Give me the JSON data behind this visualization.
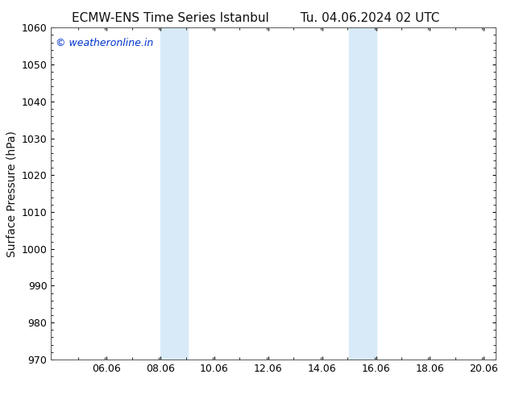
{
  "title_left": "ECMW-ENS Time Series Istanbul",
  "title_right": "Tu. 04.06.2024 02 UTC",
  "ylabel": "Surface Pressure (hPa)",
  "ylim": [
    970,
    1060
  ],
  "yticks": [
    970,
    980,
    990,
    1000,
    1010,
    1020,
    1030,
    1040,
    1050,
    1060
  ],
  "xlim_start": 4.0,
  "xlim_end": 20.5,
  "xticks": [
    6.06,
    8.06,
    10.06,
    12.06,
    14.06,
    16.06,
    18.06,
    20.06
  ],
  "xtick_labels": [
    "06.06",
    "08.06",
    "10.06",
    "12.06",
    "14.06",
    "16.06",
    "18.06",
    "20.06"
  ],
  "shaded_bands": [
    {
      "xmin": 8.06,
      "xmax": 9.06
    },
    {
      "xmin": 15.06,
      "xmax": 16.06
    }
  ],
  "shaded_color": "#d8eaf8",
  "background_color": "#ffffff",
  "plot_bg_color": "#ffffff",
  "watermark": "© weatheronline.in",
  "watermark_color": "#0033cc",
  "title_color": "#111111",
  "title_fontsize": 11,
  "ylabel_fontsize": 10,
  "tick_fontsize": 9,
  "watermark_fontsize": 9,
  "spine_color": "#555555"
}
